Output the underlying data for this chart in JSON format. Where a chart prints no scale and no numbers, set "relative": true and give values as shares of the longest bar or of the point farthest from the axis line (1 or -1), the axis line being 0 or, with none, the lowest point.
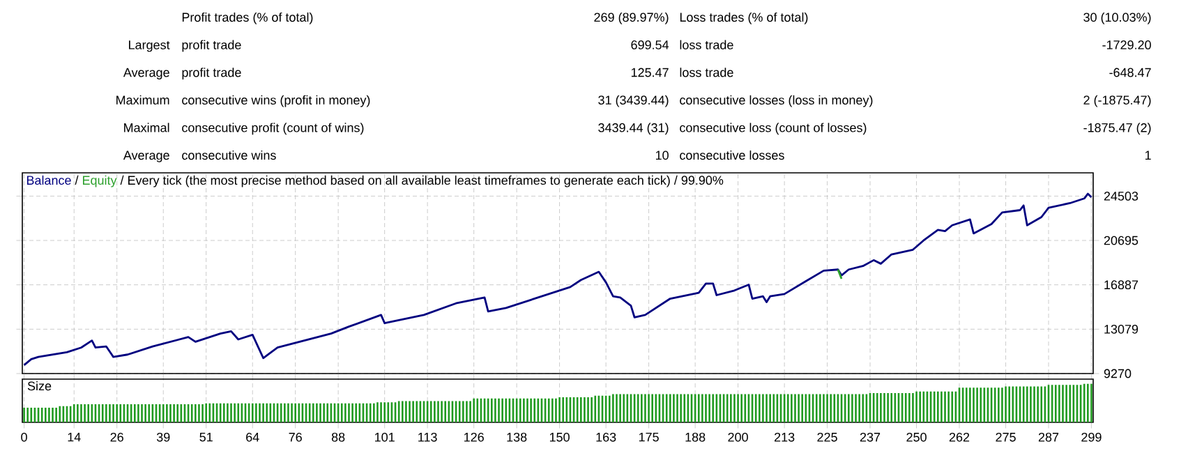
{
  "chart_data": [
    {
      "type": "other",
      "annotations": [
        "Profit trades (% of total)",
        "269 (89.97%)",
        "Loss trades (% of total)",
        "30 (10.03%)",
        "Largest",
        "profit trade",
        "699.54",
        "loss trade",
        "-1729.20",
        "Average",
        "profit trade",
        "125.47",
        "loss trade",
        "-648.47",
        "Maximum",
        "consecutive wins (profit in money)",
        "31 (3439.44)",
        "consecutive losses (loss in money)",
        "2 (-1875.47)",
        "Maximal",
        "consecutive profit (count of wins)",
        "3439.44 (31)",
        "consecutive loss (count of losses)",
        "-1875.47 (2)",
        "Average",
        "consecutive wins",
        "10",
        "consecutive losses",
        "1"
      ]
    },
    {
      "type": "line",
      "title": "Every tick (the most precise method based on all available least timeframes to generate each tick) / 99.90%",
      "legend": "top left",
      "annotations": [
        "/",
        "/"
      ],
      "grid": true,
      "tick_labels": "y",
      "xlim": [
        -0.5,
        299.5
      ],
      "xticks": [
        0,
        14,
        26,
        39,
        51,
        64,
        76,
        88,
        101,
        113,
        126,
        138,
        150,
        163,
        175,
        188,
        200,
        213,
        225,
        237,
        250,
        262,
        275,
        287,
        299
      ],
      "ylim": [
        9270,
        26500
      ],
      "yticks": [
        9270,
        13079,
        16887,
        20695,
        24503
      ],
      "series": [
        {
          "name": "Balance",
          "color": "#000080",
          "x": [
            0,
            2,
            4,
            12,
            16,
            19,
            20,
            23,
            25,
            29,
            36,
            46,
            48,
            55,
            58,
            60,
            64,
            67,
            71,
            86,
            91,
            100,
            101,
            112,
            121,
            129,
            130,
            135,
            153,
            156,
            161,
            163,
            165,
            167,
            170,
            171,
            174,
            181,
            189,
            191,
            193,
            194,
            199,
            203,
            204,
            207,
            208,
            209,
            213,
            219,
            224,
            228,
            229,
            231,
            235,
            238,
            240,
            243,
            249,
            252,
            256,
            258,
            260,
            265,
            266,
            271,
            274,
            279,
            280,
            281,
            285,
            287,
            293,
            297,
            298,
            299
          ],
          "values": [
            10000,
            10500,
            10700,
            11100,
            11500,
            12100,
            11500,
            11600,
            10700,
            10900,
            11600,
            12400,
            12000,
            12700,
            12900,
            12200,
            12600,
            10600,
            11500,
            12700,
            13300,
            14300,
            13600,
            14300,
            15300,
            15800,
            14600,
            14900,
            16700,
            17300,
            18000,
            17100,
            15900,
            15800,
            15100,
            14100,
            14300,
            15700,
            16200,
            17000,
            17000,
            16000,
            16400,
            16900,
            15700,
            15900,
            15400,
            15900,
            16100,
            17200,
            18100,
            18200,
            17700,
            18200,
            18500,
            19000,
            18700,
            19500,
            19900,
            20700,
            21600,
            21500,
            22000,
            22500,
            21300,
            22100,
            23100,
            23300,
            23700,
            22000,
            22700,
            23500,
            23900,
            24300,
            24700,
            24400
          ]
        },
        {
          "name": "Equity",
          "color": "#2ca02c",
          "x": [
            228,
            229
          ],
          "values": [
            18200,
            17400
          ]
        }
      ]
    },
    {
      "type": "bar",
      "title": "Size",
      "relative": true,
      "grid": "x",
      "tick_labels": "x",
      "color": "#1f9a1f",
      "xlim": [
        -0.5,
        299.5
      ],
      "xticks": [
        0,
        14,
        26,
        39,
        51,
        64,
        76,
        88,
        101,
        113,
        126,
        138,
        150,
        163,
        175,
        188,
        200,
        213,
        225,
        237,
        250,
        262,
        275,
        287,
        299
      ],
      "x": [
        0,
        1,
        2,
        3,
        4,
        5,
        6,
        7,
        8,
        9,
        10,
        11,
        12,
        13,
        14,
        15,
        16,
        17,
        18,
        19,
        20,
        21,
        22,
        23,
        24,
        25,
        26,
        27,
        28,
        29,
        30,
        31,
        32,
        33,
        34,
        35,
        36,
        37,
        38,
        39,
        40,
        41,
        42,
        43,
        44,
        45,
        46,
        47,
        48,
        49,
        50,
        51,
        52,
        53,
        54,
        55,
        56,
        57,
        58,
        59,
        60,
        61,
        62,
        63,
        64,
        65,
        66,
        67,
        68,
        69,
        70,
        71,
        72,
        73,
        74,
        75,
        76,
        77,
        78,
        79,
        80,
        81,
        82,
        83,
        84,
        85,
        86,
        87,
        88,
        89,
        90,
        91,
        92,
        93,
        94,
        95,
        96,
        97,
        98,
        99,
        100,
        101,
        102,
        103,
        104,
        105,
        106,
        107,
        108,
        109,
        110,
        111,
        112,
        113,
        114,
        115,
        116,
        117,
        118,
        119,
        120,
        121,
        122,
        123,
        124,
        125,
        126,
        127,
        128,
        129,
        130,
        131,
        132,
        133,
        134,
        135,
        136,
        137,
        138,
        139,
        140,
        141,
        142,
        143,
        144,
        145,
        146,
        147,
        148,
        149,
        150,
        151,
        152,
        153,
        154,
        155,
        156,
        157,
        158,
        159,
        160,
        161,
        162,
        163,
        164,
        165,
        166,
        167,
        168,
        169,
        170,
        171,
        172,
        173,
        174,
        175,
        176,
        177,
        178,
        179,
        180,
        181,
        182,
        183,
        184,
        185,
        186,
        187,
        188,
        189,
        190,
        191,
        192,
        193,
        194,
        195,
        196,
        197,
        198,
        199,
        200,
        201,
        202,
        203,
        204,
        205,
        206,
        207,
        208,
        209,
        210,
        211,
        212,
        213,
        214,
        215,
        216,
        217,
        218,
        219,
        220,
        221,
        222,
        223,
        224,
        225,
        226,
        227,
        228,
        229,
        230,
        231,
        232,
        233,
        234,
        235,
        236,
        237,
        238,
        239,
        240,
        241,
        242,
        243,
        244,
        245,
        246,
        247,
        248,
        249,
        250,
        251,
        252,
        253,
        254,
        255,
        256,
        257,
        258,
        259,
        260,
        261,
        262,
        263,
        264,
        265,
        266,
        267,
        268,
        269,
        270,
        271,
        272,
        273,
        274,
        275,
        276,
        277,
        278,
        279,
        280,
        281,
        282,
        283,
        284,
        285,
        286,
        287,
        288,
        289,
        290,
        291,
        292,
        293,
        294,
        295,
        296,
        297,
        298,
        299
      ],
      "values": [
        0.38,
        0.38,
        0.38,
        0.38,
        0.38,
        0.38,
        0.38,
        0.38,
        0.38,
        0.38,
        0.42,
        0.42,
        0.42,
        0.42,
        0.47,
        0.47,
        0.47,
        0.47,
        0.47,
        0.47,
        0.47,
        0.47,
        0.47,
        0.47,
        0.47,
        0.47,
        0.47,
        0.47,
        0.47,
        0.47,
        0.47,
        0.47,
        0.47,
        0.47,
        0.47,
        0.47,
        0.47,
        0.47,
        0.47,
        0.47,
        0.47,
        0.47,
        0.47,
        0.47,
        0.47,
        0.47,
        0.47,
        0.47,
        0.47,
        0.47,
        0.47,
        0.49,
        0.49,
        0.49,
        0.49,
        0.49,
        0.49,
        0.49,
        0.49,
        0.49,
        0.49,
        0.49,
        0.49,
        0.49,
        0.49,
        0.49,
        0.49,
        0.49,
        0.49,
        0.49,
        0.49,
        0.49,
        0.49,
        0.49,
        0.49,
        0.49,
        0.49,
        0.49,
        0.49,
        0.49,
        0.49,
        0.49,
        0.49,
        0.49,
        0.49,
        0.49,
        0.49,
        0.49,
        0.49,
        0.49,
        0.49,
        0.49,
        0.49,
        0.49,
        0.49,
        0.49,
        0.49,
        0.49,
        0.49,
        0.52,
        0.52,
        0.52,
        0.52,
        0.52,
        0.52,
        0.55,
        0.55,
        0.55,
        0.55,
        0.55,
        0.55,
        0.55,
        0.55,
        0.55,
        0.55,
        0.55,
        0.55,
        0.55,
        0.55,
        0.55,
        0.55,
        0.55,
        0.55,
        0.55,
        0.55,
        0.55,
        0.62,
        0.62,
        0.62,
        0.62,
        0.62,
        0.62,
        0.62,
        0.62,
        0.62,
        0.62,
        0.62,
        0.62,
        0.62,
        0.62,
        0.62,
        0.62,
        0.62,
        0.62,
        0.62,
        0.62,
        0.62,
        0.62,
        0.62,
        0.62,
        0.65,
        0.65,
        0.65,
        0.65,
        0.65,
        0.65,
        0.65,
        0.65,
        0.65,
        0.65,
        0.69,
        0.69,
        0.69,
        0.69,
        0.69,
        0.73,
        0.73,
        0.73,
        0.73,
        0.73,
        0.73,
        0.73,
        0.73,
        0.73,
        0.73,
        0.73,
        0.73,
        0.73,
        0.73,
        0.73,
        0.73,
        0.73,
        0.73,
        0.73,
        0.73,
        0.73,
        0.73,
        0.73,
        0.73,
        0.73,
        0.73,
        0.73,
        0.73,
        0.73,
        0.73,
        0.73,
        0.73,
        0.73,
        0.73,
        0.73,
        0.73,
        0.73,
        0.73,
        0.73,
        0.73,
        0.73,
        0.73,
        0.73,
        0.73,
        0.73,
        0.73,
        0.73,
        0.73,
        0.73,
        0.73,
        0.73,
        0.73,
        0.73,
        0.73,
        0.73,
        0.73,
        0.73,
        0.73,
        0.73,
        0.73,
        0.73,
        0.73,
        0.73,
        0.73,
        0.73,
        0.73,
        0.73,
        0.73,
        0.73,
        0.73,
        0.73,
        0.73,
        0.76,
        0.76,
        0.76,
        0.76,
        0.76,
        0.76,
        0.76,
        0.76,
        0.76,
        0.76,
        0.76,
        0.76,
        0.76,
        0.8,
        0.8,
        0.8,
        0.8,
        0.8,
        0.8,
        0.8,
        0.8,
        0.8,
        0.8,
        0.8,
        0.8,
        0.9,
        0.9,
        0.9,
        0.9,
        0.9,
        0.9,
        0.9,
        0.9,
        0.9,
        0.9,
        0.9,
        0.9,
        0.9,
        0.93,
        0.93,
        0.93,
        0.93,
        0.93,
        0.93,
        0.93,
        0.93,
        0.93,
        0.93,
        0.93,
        0.93,
        0.97,
        0.97,
        0.97,
        0.97,
        0.97,
        0.97,
        0.97,
        0.97,
        0.97,
        0.97,
        1,
        1,
        1
      ]
    }
  ]
}
